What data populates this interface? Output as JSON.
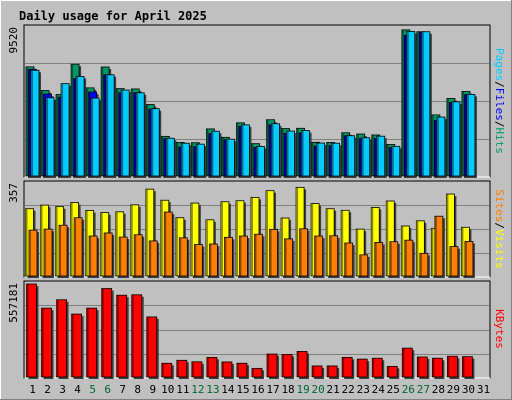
{
  "title": "Daily usage for April 2025",
  "colors": {
    "hits": "#009966",
    "files": "#0000ff",
    "pages": "#00ccff",
    "visits": "#ffff00",
    "sites": "#ff8000",
    "kbytes": "#ff0000",
    "weekend_day": "#006633",
    "weekday": "#000000",
    "title": "#0000cc",
    "plot_bg": "#c0c0c0",
    "frame_bg": "#c0c0c0"
  },
  "chart_data": [
    {
      "id": "hits-files-pages",
      "type": "bar",
      "ymax_label": "9520",
      "ylim": [
        0,
        9520
      ],
      "series_labels": {
        "pages": "Pages",
        "files": "Files",
        "hits": "Hits",
        "sep": "/"
      },
      "series": [
        {
          "name": "Hits",
          "values": [
            7020,
            5500,
            5240,
            7190,
            5670,
            7010,
            5620,
            5600,
            4600,
            2550,
            2160,
            2140,
            3030,
            2490,
            3420,
            2080,
            3620,
            3050,
            3070,
            2170,
            2160,
            2780,
            2700,
            2640,
            2030,
            9400,
            9280,
            3930,
            4990,
            5440,
            0
          ]
        },
        {
          "name": "Files",
          "values": [
            6860,
            5270,
            5070,
            6260,
            5400,
            6510,
            5350,
            5360,
            4300,
            2400,
            1860,
            1890,
            2720,
            2340,
            3190,
            1840,
            3290,
            2740,
            2770,
            1920,
            1950,
            2590,
            2410,
            2430,
            1830,
            9050,
            9240,
            3570,
            4730,
            5230,
            0
          ]
        },
        {
          "name": "Pages",
          "values": [
            6800,
            5030,
            5940,
            6400,
            5010,
            6510,
            5530,
            5350,
            4330,
            2430,
            2110,
            2050,
            2880,
            2370,
            3290,
            1900,
            3360,
            2890,
            2920,
            2120,
            2110,
            2590,
            2460,
            2560,
            1910,
            9300,
            9280,
            3790,
            4770,
            5250,
            0
          ]
        }
      ]
    },
    {
      "id": "visits-sites",
      "type": "bar",
      "ymax_label": "357",
      "ylim": [
        0,
        357
      ],
      "series_labels": {
        "sites": "Sites",
        "visits": "Visits",
        "sep": "/"
      },
      "series": [
        {
          "name": "Visits",
          "values": [
            261,
            275,
            269,
            285,
            254,
            246,
            249,
            276,
            337,
            294,
            226,
            283,
            218,
            288,
            292,
            305,
            331,
            225,
            344,
            281,
            261,
            255,
            182,
            266,
            291,
            194,
            214,
            185,
            318,
            189,
            0
          ]
        },
        {
          "name": "Sites",
          "values": [
            178,
            182,
            197,
            226,
            155,
            167,
            151,
            160,
            136,
            248,
            148,
            122,
            124,
            150,
            155,
            162,
            181,
            144,
            183,
            155,
            156,
            128,
            82,
            130,
            133,
            139,
            88,
            232,
            114,
            134,
            0
          ]
        }
      ]
    },
    {
      "id": "kbytes",
      "type": "bar",
      "ymax_label": "557181",
      "ylim": [
        0,
        557181
      ],
      "series_labels": {
        "kbytes": "KBytes"
      },
      "series": [
        {
          "name": "KBytes",
          "values": [
            557181,
            412500,
            462700,
            377000,
            412500,
            530000,
            490000,
            492500,
            360000,
            82300,
            100100,
            91200,
            117400,
            90000,
            82300,
            51700,
            137500,
            135000,
            153000,
            66300,
            66300,
            117400,
            107200,
            112500,
            63700,
            173000,
            119900,
            112500,
            124500,
            122000,
            0
          ]
        }
      ]
    }
  ],
  "x_labels": [
    "1",
    "2",
    "3",
    "4",
    "5",
    "6",
    "7",
    "8",
    "9",
    "10",
    "11",
    "12",
    "13",
    "14",
    "15",
    "16",
    "17",
    "18",
    "19",
    "20",
    "21",
    "22",
    "23",
    "24",
    "25",
    "26",
    "27",
    "28",
    "29",
    "30",
    "31"
  ],
  "weekend_days": [
    5,
    6,
    12,
    13,
    19,
    20,
    26,
    27
  ]
}
